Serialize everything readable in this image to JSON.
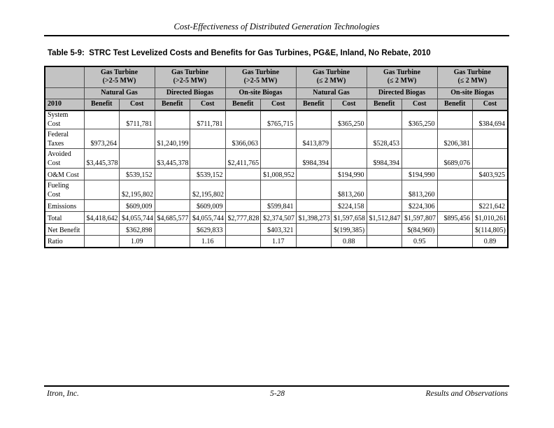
{
  "running_header": {
    "title": "Cost-Effectiveness of Distributed Generation Technologies"
  },
  "table_title": "Table 5-9:  STRC Test Levelized Costs and Benefits for Gas Turbines, PG&E, Inland, No Rebate, 2010",
  "table": {
    "year_label": "2010",
    "benefit_label": "Benefit",
    "cost_label": "Cost",
    "groups": [
      {
        "name": "Gas Turbine\n(>2-5 MW)",
        "fuel": "Natural Gas"
      },
      {
        "name": "Gas Turbine\n(>2-5 MW)",
        "fuel": "Directed Biogas"
      },
      {
        "name": "Gas Turbine\n(>2-5 MW)",
        "fuel": "On-site Biogas"
      },
      {
        "name": "Gas Turbine\n(≤ 2 MW)",
        "fuel": "Natural Gas"
      },
      {
        "name": "Gas Turbine\n(≤ 2 MW)",
        "fuel": "Directed Biogas"
      },
      {
        "name": "Gas Turbine\n(≤ 2 MW)",
        "fuel": "On-site Biogas"
      }
    ],
    "rows": [
      {
        "label": "System Cost",
        "align": "right",
        "values": [
          "",
          "$711,781",
          "",
          "$711,781",
          "",
          "$765,715",
          "",
          "$365,250",
          "",
          "$365,250",
          "",
          "$384,694"
        ]
      },
      {
        "label": "Federal\nTaxes",
        "align": "right",
        "values": [
          "$973,264",
          "",
          "$1,240,199",
          "",
          "$366,063",
          "",
          "$413,879",
          "",
          "$528,453",
          "",
          "$206,381",
          ""
        ]
      },
      {
        "label": "Avoided\nCost",
        "align": "right",
        "values": [
          "$3,445,378",
          "",
          "$3,445,378",
          "",
          "$2,411,765",
          "",
          "$984,394",
          "",
          "$984,394",
          "",
          "$689,076",
          ""
        ]
      },
      {
        "label": "O&M Cost",
        "align": "right",
        "values": [
          "",
          "$539,152",
          "",
          "$539,152",
          "",
          "$1,008,952",
          "",
          "$194,990",
          "",
          "$194,990",
          "",
          "$403,925"
        ]
      },
      {
        "label": "Fueling\nCost",
        "align": "right",
        "values": [
          "",
          "$2,195,802",
          "",
          "$2,195,802",
          "",
          "",
          "",
          "$813,260",
          "",
          "$813,260",
          "",
          ""
        ]
      },
      {
        "label": "Emissions",
        "align": "right",
        "values": [
          "",
          "$609,009",
          "",
          "$609,009",
          "",
          "$599,841",
          "",
          "$224,158",
          "",
          "$224,306",
          "",
          "$221,642"
        ]
      },
      {
        "label": "Total",
        "align": "right",
        "values": [
          "$4,418,642",
          "$4,055,744",
          "$4,685,577",
          "$4,055,744",
          "$2,777,828",
          "$2,374,507",
          "$1,398,273",
          "$1,597,658",
          "$1,512,847",
          "$1,597,807",
          "$895,456",
          "$1,010,261"
        ]
      },
      {
        "label": "Net Benefit",
        "align": "right",
        "values": [
          "",
          "$362,898",
          "",
          "$629,833",
          "",
          "$403,321",
          "",
          "$(199,385)",
          "",
          "$(84,960)",
          "",
          "$(114,805)"
        ]
      },
      {
        "label": "Ratio",
        "align": "center",
        "values": [
          "",
          "1.09",
          "",
          "1.16",
          "",
          "1.17",
          "",
          "0.88",
          "",
          "0.95",
          "",
          "0.89"
        ]
      }
    ]
  },
  "footer": {
    "left": "Itron, Inc.",
    "center": "5-28",
    "right": "Results and Observations"
  },
  "colors": {
    "header_fill": "#c3c3c3",
    "grid_line": "#4d4d4d",
    "outer_border": "#000000"
  }
}
